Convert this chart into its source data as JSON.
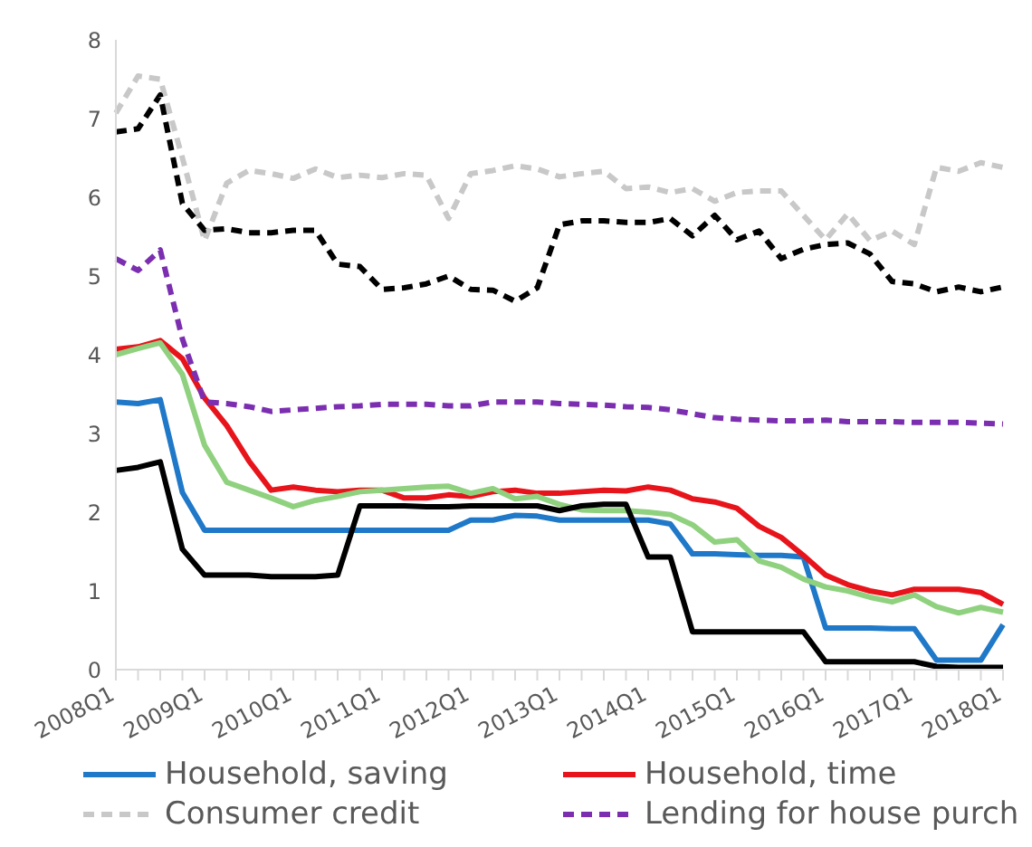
{
  "chart_data": {
    "type": "line",
    "categories": [
      "2008Q1",
      null,
      null,
      null,
      "2009Q1",
      null,
      null,
      null,
      "2010Q1",
      null,
      null,
      null,
      "2011Q1",
      null,
      null,
      null,
      "2012Q1",
      null,
      null,
      null,
      "2013Q1",
      null,
      null,
      null,
      "2014Q1",
      null,
      null,
      null,
      "2015Q1",
      null,
      null,
      null,
      "2016Q1",
      null,
      null,
      null,
      "2017Q1",
      null,
      null,
      null,
      "2018Q1"
    ],
    "ylim": [
      0,
      8
    ],
    "yticks": [
      0,
      1,
      2,
      3,
      4,
      5,
      6,
      7,
      8
    ],
    "grid": false,
    "legend": "bottom",
    "marker": "none",
    "series": [
      {
        "name": "Household, saving",
        "color": "#1f78c8",
        "line_style": "solid",
        "values": [
          3.4,
          3.38,
          3.43,
          2.25,
          1.77,
          1.77,
          1.77,
          1.77,
          1.77,
          1.77,
          1.77,
          1.77,
          1.77,
          1.77,
          1.77,
          1.77,
          1.9,
          1.9,
          1.96,
          1.95,
          1.9,
          1.9,
          1.9,
          1.9,
          1.9,
          1.85,
          1.47,
          1.47,
          1.46,
          1.45,
          1.45,
          1.43,
          0.53,
          0.53,
          0.53,
          0.52,
          0.52,
          0.12,
          0.12,
          0.12,
          0.57
        ]
      },
      {
        "name": "Household, time",
        "color": "#e8141b",
        "line_style": "solid",
        "values": [
          4.07,
          4.1,
          4.18,
          3.95,
          3.45,
          3.1,
          2.65,
          2.28,
          2.32,
          2.28,
          2.26,
          2.28,
          2.28,
          2.18,
          2.18,
          2.22,
          2.2,
          2.26,
          2.28,
          2.24,
          2.24,
          2.26,
          2.28,
          2.27,
          2.32,
          2.28,
          2.17,
          2.13,
          2.05,
          1.82,
          1.68,
          1.45,
          1.2,
          1.08,
          1.0,
          0.95,
          1.02,
          1.02,
          1.02,
          0.98,
          0.83
        ]
      },
      {
        "name": "Consumer credit",
        "color": "#c8c8c8",
        "line_style": "dashed",
        "values": [
          7.07,
          7.54,
          7.5,
          6.5,
          5.45,
          6.18,
          6.34,
          6.3,
          6.24,
          6.36,
          6.25,
          6.28,
          6.25,
          6.3,
          6.28,
          5.73,
          6.3,
          6.34,
          6.4,
          6.36,
          6.26,
          6.3,
          6.33,
          6.11,
          6.13,
          6.06,
          6.11,
          5.95,
          6.06,
          6.08,
          6.08,
          5.77,
          5.46,
          5.79,
          5.45,
          5.57,
          5.4,
          6.38,
          6.33,
          6.44,
          6.38
        ]
      },
      {
        "name": "Lending for house purch",
        "color": "#7b2fb0",
        "line_style": "dashed",
        "values": [
          5.22,
          5.07,
          5.33,
          4.2,
          3.4,
          3.38,
          3.34,
          3.28,
          3.3,
          3.32,
          3.34,
          3.35,
          3.37,
          3.37,
          3.37,
          3.35,
          3.35,
          3.4,
          3.4,
          3.4,
          3.38,
          3.37,
          3.36,
          3.34,
          3.33,
          3.3,
          3.25,
          3.2,
          3.18,
          3.17,
          3.16,
          3.16,
          3.17,
          3.15,
          3.15,
          3.15,
          3.14,
          3.14,
          3.14,
          3.13,
          3.12
        ]
      },
      {
        "color": "#000000",
        "line_style": "dashed",
        "values": [
          6.83,
          6.87,
          7.3,
          5.92,
          5.58,
          5.6,
          5.55,
          5.55,
          5.58,
          5.58,
          5.15,
          5.12,
          4.83,
          4.85,
          4.9,
          5.0,
          4.83,
          4.82,
          4.68,
          4.85,
          5.65,
          5.7,
          5.7,
          5.68,
          5.68,
          5.73,
          5.51,
          5.77,
          5.46,
          5.57,
          5.22,
          5.34,
          5.4,
          5.42,
          5.28,
          4.93,
          4.9,
          4.8,
          4.86,
          4.8,
          4.86
        ]
      },
      {
        "color": "#8fd17e",
        "line_style": "solid",
        "values": [
          4.0,
          4.08,
          4.15,
          3.75,
          2.85,
          2.38,
          2.28,
          2.18,
          2.07,
          2.15,
          2.2,
          2.26,
          2.28,
          2.3,
          2.32,
          2.33,
          2.24,
          2.3,
          2.17,
          2.2,
          2.1,
          2.03,
          2.02,
          2.02,
          2.0,
          1.97,
          1.84,
          1.62,
          1.65,
          1.38,
          1.3,
          1.15,
          1.05,
          1.0,
          0.92,
          0.86,
          0.95,
          0.8,
          0.72,
          0.79,
          0.73
        ]
      },
      {
        "color": "#000000",
        "line_style": "solid",
        "values": [
          2.53,
          2.57,
          2.64,
          1.53,
          1.2,
          1.2,
          1.2,
          1.18,
          1.18,
          1.18,
          1.2,
          2.08,
          2.08,
          2.08,
          2.07,
          2.07,
          2.08,
          2.08,
          2.08,
          2.08,
          2.02,
          2.08,
          2.1,
          2.1,
          1.43,
          1.43,
          0.48,
          0.48,
          0.48,
          0.48,
          0.48,
          0.48,
          0.1,
          0.1,
          0.1,
          0.1,
          0.1,
          0.04,
          0.03,
          0.03,
          0.03
        ]
      }
    ]
  }
}
